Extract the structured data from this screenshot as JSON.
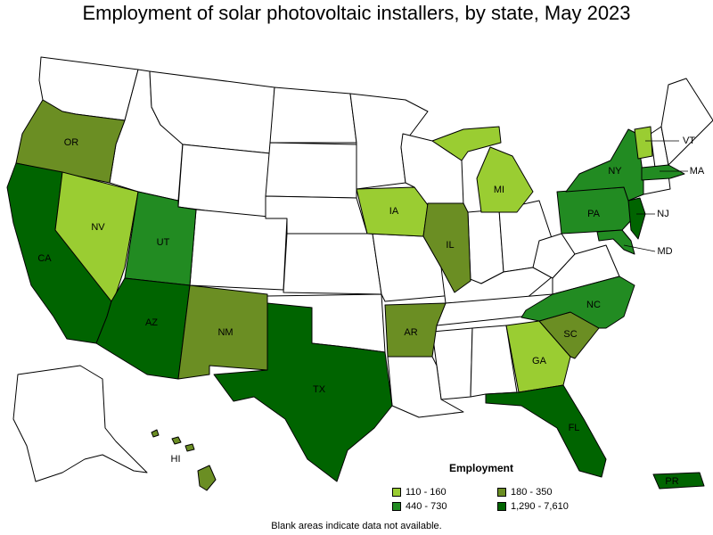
{
  "title": "Employment of solar photovoltaic installers, by state, May 2023",
  "footnote": "Blank areas indicate data not available.",
  "legend": {
    "title": "Employment",
    "items": [
      {
        "label": "110 - 160",
        "color": "#9acd32"
      },
      {
        "label": "180 - 350",
        "color": "#6b8e23"
      },
      {
        "label": "440 - 730",
        "color": "#228b22"
      },
      {
        "label": "1,290 - 7,610",
        "color": "#006400"
      }
    ]
  },
  "states": [
    {
      "code": "OR",
      "label": "OR",
      "bin": 1
    },
    {
      "code": "CA",
      "label": "CA",
      "bin": 3
    },
    {
      "code": "NV",
      "label": "NV",
      "bin": 0
    },
    {
      "code": "UT",
      "label": "UT",
      "bin": 2
    },
    {
      "code": "AZ",
      "label": "AZ",
      "bin": 3
    },
    {
      "code": "NM",
      "label": "NM",
      "bin": 1
    },
    {
      "code": "TX",
      "label": "TX",
      "bin": 3
    },
    {
      "code": "IA",
      "label": "IA",
      "bin": 0
    },
    {
      "code": "IL",
      "label": "IL",
      "bin": 1
    },
    {
      "code": "AR",
      "label": "AR",
      "bin": 1
    },
    {
      "code": "MI",
      "label": "MI",
      "bin": 0
    },
    {
      "code": "GA",
      "label": "GA",
      "bin": 0
    },
    {
      "code": "FL",
      "label": "FL",
      "bin": 3
    },
    {
      "code": "SC",
      "label": "SC",
      "bin": 1
    },
    {
      "code": "NC",
      "label": "NC",
      "bin": 2
    },
    {
      "code": "PA",
      "label": "PA",
      "bin": 2
    },
    {
      "code": "NY",
      "label": "NY",
      "bin": 2
    },
    {
      "code": "VT",
      "label": "VT",
      "bin": 0
    },
    {
      "code": "MA",
      "label": "MA",
      "bin": 2
    },
    {
      "code": "NJ",
      "label": "NJ",
      "bin": 3
    },
    {
      "code": "MD",
      "label": "MD",
      "bin": 2
    },
    {
      "code": "HI",
      "label": "HI",
      "bin": 1
    },
    {
      "code": "PR",
      "label": "PR",
      "bin": 3
    }
  ]
}
